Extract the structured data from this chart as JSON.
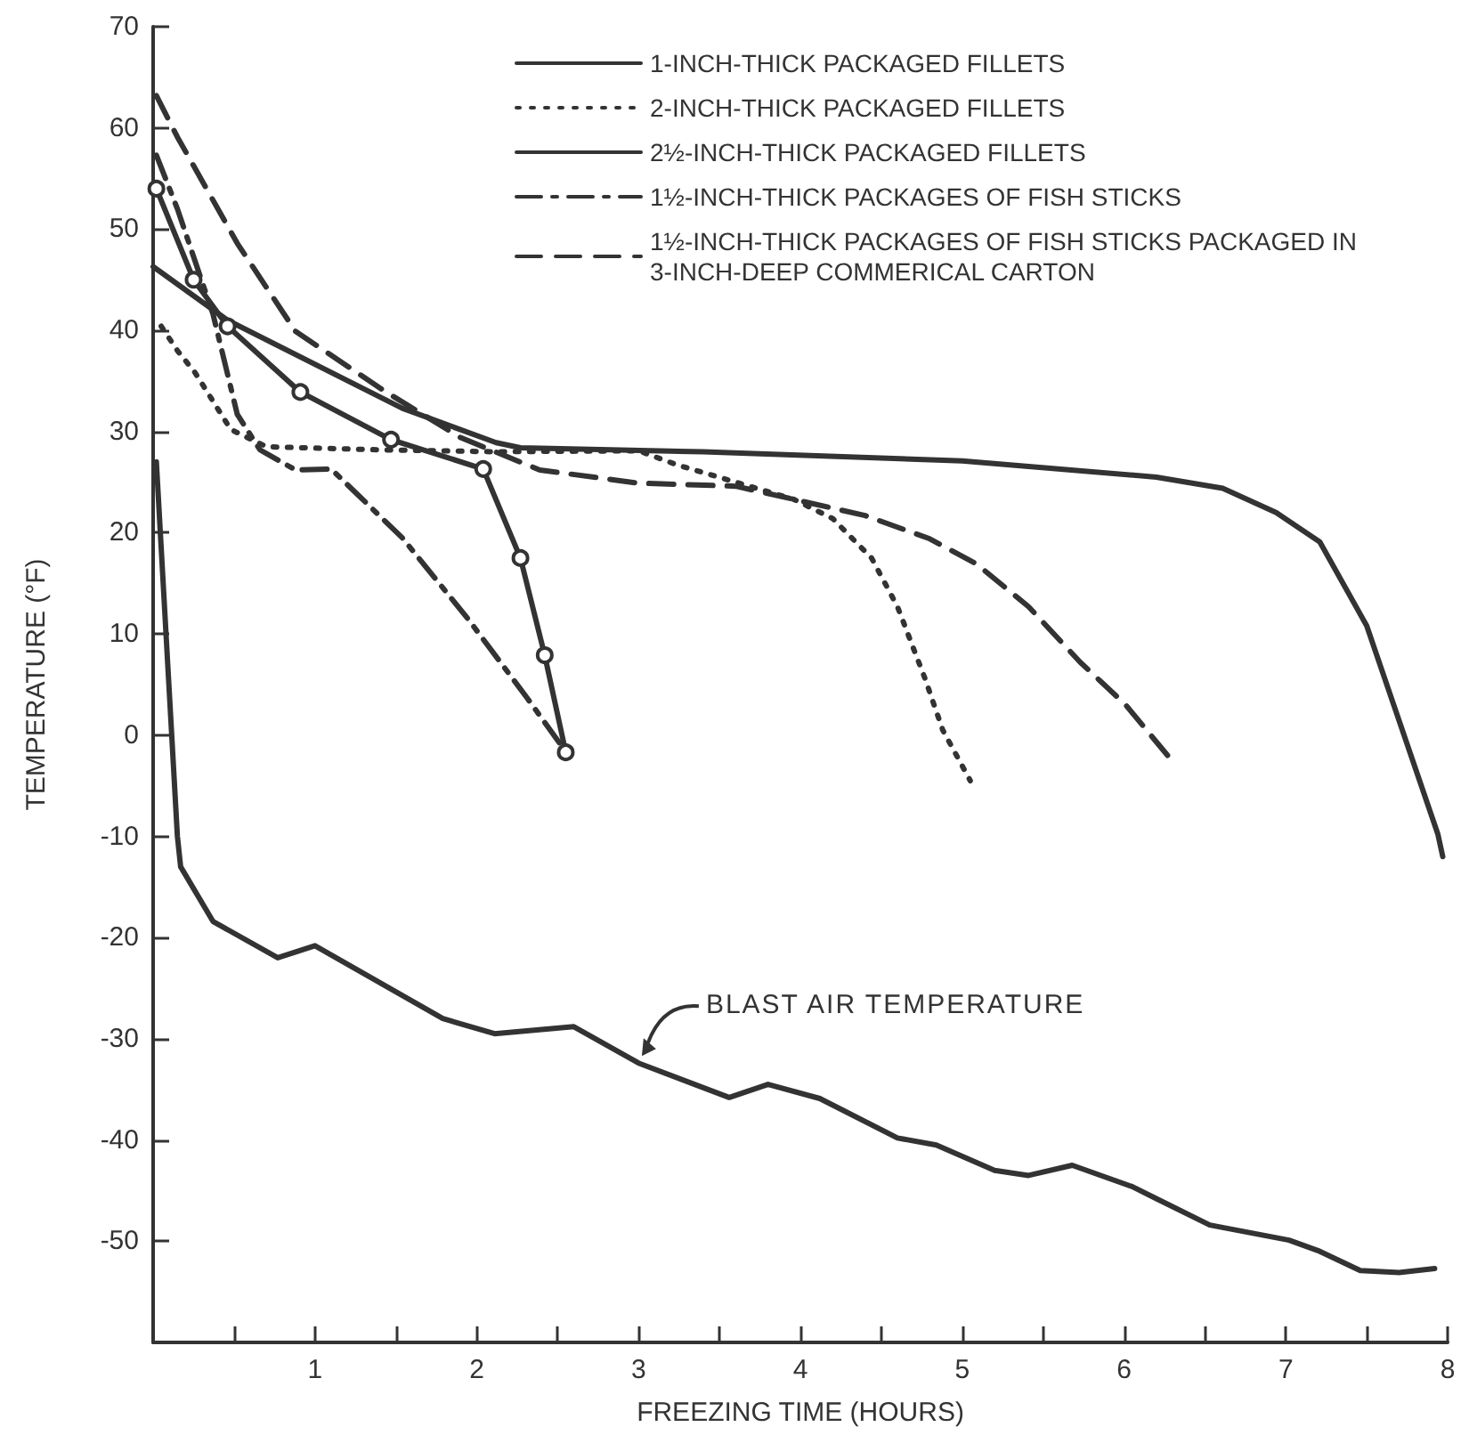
{
  "chart_data": {
    "type": "line",
    "xlabel": "FREEZING TIME (HOURS)",
    "ylabel": "TEMPERATURE (°F)",
    "xlim": [
      0,
      8
    ],
    "xticks": [
      {
        "value": 0,
        "label": null
      },
      {
        "value": 0.5,
        "label": null
      },
      1,
      {
        "value": 1.5,
        "label": null
      },
      2,
      {
        "value": 2.5,
        "label": null
      },
      3,
      {
        "value": 3.5,
        "label": null
      },
      4,
      {
        "value": 4.5,
        "label": null
      },
      5,
      {
        "value": 5.5,
        "label": null
      },
      6,
      {
        "value": 6.5,
        "label": null
      },
      7,
      {
        "value": 7.5,
        "label": null
      },
      8
    ],
    "ylim": [
      -60,
      70
    ],
    "yticks": [
      -50,
      -40,
      -30,
      -20,
      -10,
      0,
      10,
      20,
      30,
      40,
      50,
      60,
      70
    ],
    "grid": false,
    "legend": "top right",
    "series": [
      {
        "name": "1-INCH-THICK PACKAGED FILLETS",
        "color": "#333333",
        "marker": "circle",
        "line_style": "solid",
        "x": [
          0.02,
          0.25,
          0.46,
          0.91,
          1.47,
          2.04,
          2.27,
          2.42,
          2.55
        ],
        "values": [
          54,
          45,
          40.4,
          33.9,
          29.2,
          26.3,
          17.5,
          7.9,
          -1.7
        ]
      },
      {
        "name": "2-INCH-THICK PACKAGED FILLETS",
        "color": "#333333",
        "marker": "none",
        "line_style": "dotted",
        "x": [
          0.05,
          0.15,
          0.26,
          0.48,
          0.7,
          1.39,
          2.11,
          3.0,
          3.24,
          3.96,
          4.2,
          4.44,
          4.6,
          4.77,
          4.88,
          5.05
        ],
        "values": [
          40.4,
          38,
          35.8,
          30.2,
          28.5,
          28.2,
          28,
          28.1,
          26.7,
          23.3,
          21.4,
          17.5,
          12.7,
          5.6,
          0.5,
          -4.5
        ]
      },
      {
        "name": "2½-INCH-THICK PACKAGED FILLETS",
        "color": "#333333",
        "marker": "none",
        "line_style": "solid",
        "x": [
          0,
          0.46,
          1.54,
          2.12,
          2.27,
          3.4,
          5.0,
          6.2,
          6.61,
          6.94,
          7.21,
          7.5,
          7.94,
          7.97
        ],
        "values": [
          46.3,
          41,
          32.3,
          28.9,
          28.4,
          28,
          27.1,
          25.5,
          24.4,
          22,
          19.1,
          10.8,
          -9.8,
          -12
        ]
      },
      {
        "name": "1½-INCH-THICK PACKAGES OF FISH STICKS",
        "color": "#333333",
        "marker": "none",
        "line_style": "dashdot",
        "x": [
          0.02,
          0.15,
          0.37,
          0.52,
          0.66,
          0.88,
          1.1,
          1.54,
          1.95,
          2.31,
          2.54
        ],
        "values": [
          57.3,
          52,
          41.6,
          31.7,
          28.2,
          26.2,
          26.3,
          19.5,
          11.4,
          3.7,
          -1.4
        ]
      },
      {
        "name": "1½-INCH-THICK PACKAGES OF FISH STICKS PACKAGED IN 3-INCH-DEEP COMMERICAL CARTON",
        "color": "#333333",
        "marker": "none",
        "line_style": "dashed",
        "x": [
          0.02,
          0.15,
          0.52,
          0.88,
          1.43,
          1.9,
          2.39,
          3.0,
          3.6,
          3.96,
          4.4,
          4.8,
          5.09,
          5.41,
          5.73,
          6.01,
          6.29
        ],
        "values": [
          63.2,
          59.1,
          48.6,
          39.9,
          34,
          29.4,
          26.2,
          24.9,
          24.6,
          23.3,
          21.7,
          19.4,
          16.9,
          12.7,
          7.2,
          3.0,
          -2.4
        ]
      },
      {
        "color": "#333333",
        "marker": "none",
        "line_style": "solid",
        "x": [
          0.02,
          0.15,
          0.17,
          0.37,
          0.77,
          1.0,
          1.79,
          2.11,
          2.6,
          3.0,
          3.56,
          3.8,
          4.12,
          4.6,
          4.84,
          5.2,
          5.41,
          5.68,
          6.05,
          6.2,
          6.53,
          7.02,
          7.21,
          7.46,
          7.7,
          7.92
        ],
        "values": [
          27,
          -10,
          -13,
          -18.4,
          -22,
          -20.8,
          -28,
          -29.5,
          -28.8,
          -32.4,
          -35.8,
          -34.5,
          -35.9,
          -39.8,
          -40.5,
          -43,
          -43.5,
          -42.5,
          -44.6,
          -45.8,
          -48.4,
          -49.9,
          -51,
          -52.9,
          -53.1,
          -52.7
        ]
      }
    ],
    "annotations": [
      {
        "text": "BLAST AIR TEMPERATURE",
        "x": 3.02,
        "y": -31.7
      }
    ]
  }
}
